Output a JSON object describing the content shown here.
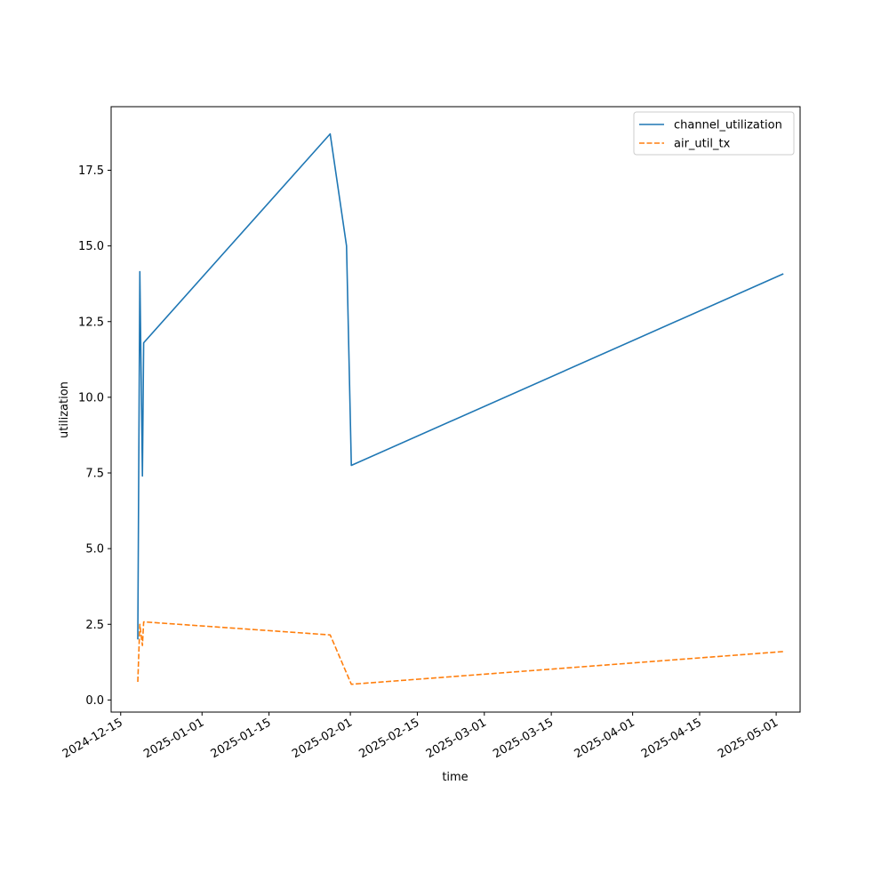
{
  "chart_data": {
    "type": "line",
    "title": "",
    "xlabel": "time",
    "ylabel": "utilization",
    "x_axis_type": "date",
    "xlim": [
      "2024-12-13",
      "2025-05-06"
    ],
    "ylim": [
      -0.4,
      19.6
    ],
    "x_ticks": [
      "2024-12-15",
      "2025-01-01",
      "2025-01-15",
      "2025-02-01",
      "2025-02-15",
      "2025-03-01",
      "2025-03-15",
      "2025-04-01",
      "2025-04-15",
      "2025-05-01"
    ],
    "y_ticks": [
      0.0,
      2.5,
      5.0,
      7.5,
      10.0,
      12.5,
      15.0,
      17.5
    ],
    "y_tick_labels": [
      "0.0",
      "2.5",
      "5.0",
      "7.5",
      "10.0",
      "12.5",
      "15.0",
      "17.5"
    ],
    "grid": false,
    "legend_position": "top-right",
    "series": [
      {
        "name": "channel_utilization",
        "color": "#1f77b4",
        "dash": "solid",
        "points": [
          {
            "x": "2024-12-18T14:00",
            "y": 2.0
          },
          {
            "x": "2024-12-19T00:00",
            "y": 14.15
          },
          {
            "x": "2024-12-19T13:00",
            "y": 7.4
          },
          {
            "x": "2024-12-19T19:00",
            "y": 11.8
          },
          {
            "x": "2025-01-27T19:00",
            "y": 18.7
          },
          {
            "x": "2025-01-31T05:00",
            "y": 15.0
          },
          {
            "x": "2025-02-01T05:00",
            "y": 7.75
          },
          {
            "x": "2025-05-02T12:00",
            "y": 14.08
          }
        ]
      },
      {
        "name": "air_util_tx",
        "color": "#ff7f0e",
        "dash": "dashed",
        "points": [
          {
            "x": "2024-12-18T14:00",
            "y": 0.6
          },
          {
            "x": "2024-12-19T00:00",
            "y": 2.5
          },
          {
            "x": "2024-12-19T13:00",
            "y": 1.8
          },
          {
            "x": "2024-12-19T19:00",
            "y": 2.58
          },
          {
            "x": "2025-01-27T19:00",
            "y": 2.15
          },
          {
            "x": "2025-02-01T05:00",
            "y": 0.52
          },
          {
            "x": "2025-05-02T12:00",
            "y": 1.6
          }
        ]
      }
    ]
  }
}
